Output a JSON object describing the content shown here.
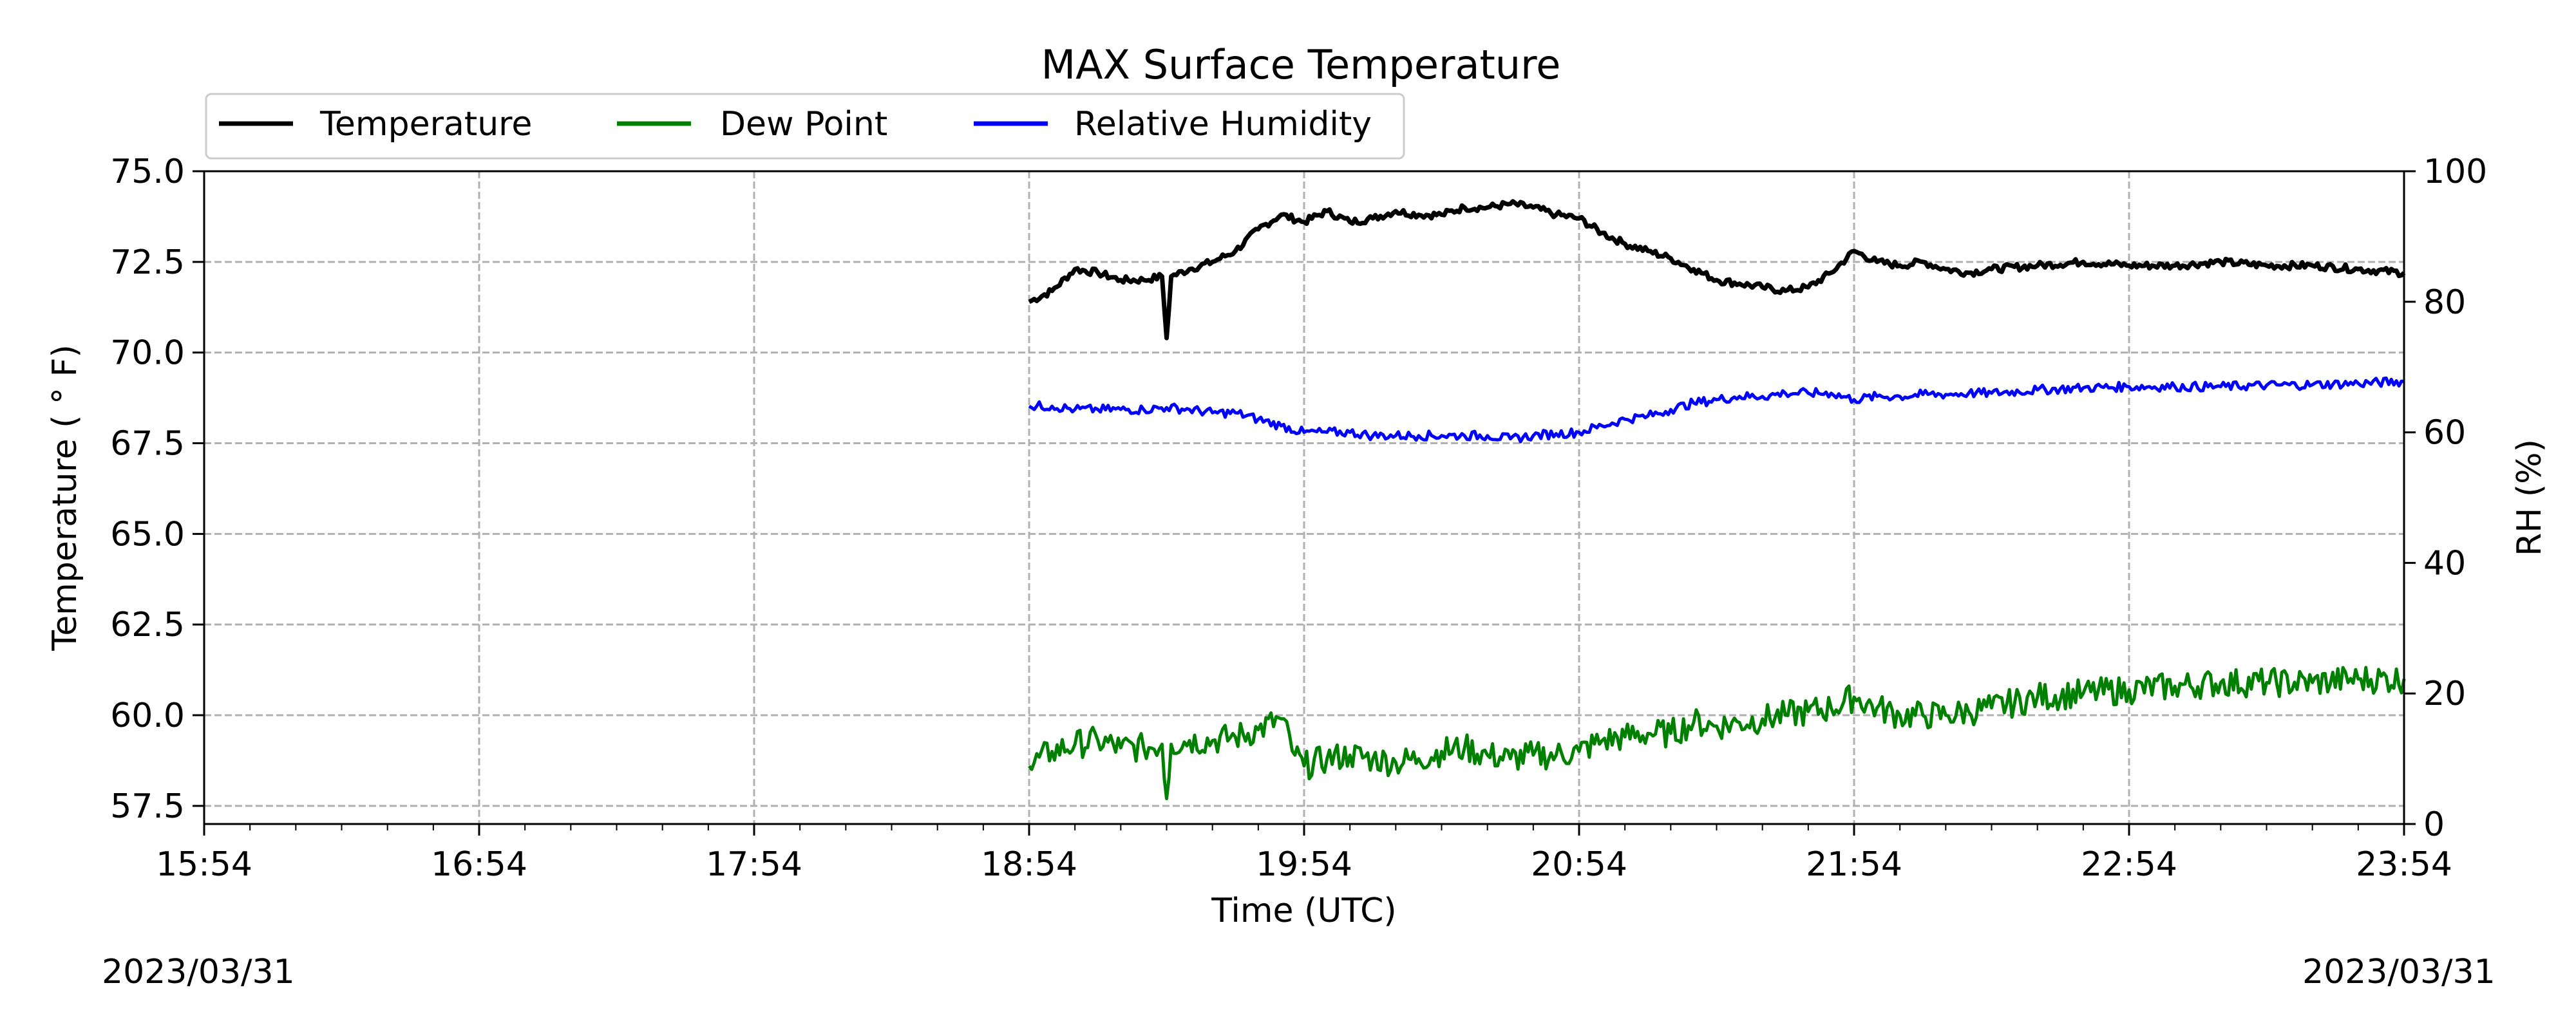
{
  "chart_data": {
    "type": "line",
    "title": "MAX Surface Temperature",
    "xlabel": "Time (UTC)",
    "ylabel": "Temperature ($^\\circ$F)",
    "ylabel_display": "Temperature ( ° F)",
    "y2label": "RH (%)",
    "xlim": [
      "15:54",
      "23:54"
    ],
    "ylim": [
      57.0,
      75.0
    ],
    "y2lim": [
      0,
      100
    ],
    "x_ticks": [
      "15:54",
      "16:54",
      "17:54",
      "18:54",
      "19:54",
      "20:54",
      "21:54",
      "22:54",
      "23:54"
    ],
    "y_ticks": [
      "57.5",
      "60.0",
      "62.5",
      "65.0",
      "67.5",
      "70.0",
      "72.5",
      "75.0"
    ],
    "y2_ticks": [
      "0",
      "20",
      "40",
      "60",
      "80",
      "100"
    ],
    "grid": true,
    "legend_position": "top-left",
    "series": [
      {
        "name": "Temperature",
        "axis": "left",
        "color": "#000000",
        "points": [
          [
            "18:54",
            71.4
          ],
          [
            "18:59",
            71.7
          ],
          [
            "19:04",
            72.3
          ],
          [
            "19:09",
            72.2
          ],
          [
            "19:14",
            72.0
          ],
          [
            "19:19",
            72.0
          ],
          [
            "19:23",
            72.1
          ],
          [
            "19:24",
            70.4
          ],
          [
            "19:25",
            72.1
          ],
          [
            "19:29",
            72.3
          ],
          [
            "19:34",
            72.5
          ],
          [
            "19:39",
            72.8
          ],
          [
            "19:44",
            73.4
          ],
          [
            "19:49",
            73.8
          ],
          [
            "19:54",
            73.6
          ],
          [
            "19:59",
            73.9
          ],
          [
            "20:04",
            73.6
          ],
          [
            "20:09",
            73.7
          ],
          [
            "20:14",
            73.9
          ],
          [
            "20:19",
            73.8
          ],
          [
            "20:24",
            73.8
          ],
          [
            "20:29",
            74.0
          ],
          [
            "20:34",
            74.0
          ],
          [
            "20:39",
            74.1
          ],
          [
            "20:44",
            74.0
          ],
          [
            "20:49",
            73.8
          ],
          [
            "20:54",
            73.7
          ],
          [
            "20:59",
            73.3
          ],
          [
            "21:04",
            73.0
          ],
          [
            "21:09",
            72.8
          ],
          [
            "21:14",
            72.6
          ],
          [
            "21:19",
            72.3
          ],
          [
            "21:24",
            72.0
          ],
          [
            "21:29",
            71.9
          ],
          [
            "21:34",
            71.8
          ],
          [
            "21:39",
            71.7
          ],
          [
            "21:44",
            71.8
          ],
          [
            "21:49",
            72.2
          ],
          [
            "21:54",
            72.8
          ],
          [
            "21:59",
            72.5
          ],
          [
            "22:04",
            72.4
          ],
          [
            "22:09",
            72.5
          ],
          [
            "22:14",
            72.3
          ],
          [
            "22:19",
            72.2
          ],
          [
            "22:24",
            72.3
          ],
          [
            "22:34",
            72.4
          ],
          [
            "22:44",
            72.5
          ],
          [
            "22:54",
            72.4
          ],
          [
            "23:04",
            72.4
          ],
          [
            "23:14",
            72.5
          ],
          [
            "23:24",
            72.4
          ],
          [
            "23:34",
            72.4
          ],
          [
            "23:44",
            72.3
          ],
          [
            "23:54",
            72.2
          ]
        ]
      },
      {
        "name": "Dew Point",
        "axis": "left",
        "color": "#008000",
        "points": [
          [
            "18:54",
            58.6
          ],
          [
            "18:59",
            59.0
          ],
          [
            "19:04",
            59.2
          ],
          [
            "19:09",
            59.3
          ],
          [
            "19:14",
            59.1
          ],
          [
            "19:19",
            59.1
          ],
          [
            "19:23",
            59.2
          ],
          [
            "19:24",
            57.7
          ],
          [
            "19:25",
            59.2
          ],
          [
            "19:29",
            59.3
          ],
          [
            "19:34",
            59.3
          ],
          [
            "19:39",
            59.4
          ],
          [
            "19:44",
            59.6
          ],
          [
            "19:49",
            59.9
          ],
          [
            "19:52",
            58.9
          ],
          [
            "19:54",
            58.6
          ],
          [
            "19:59",
            58.8
          ],
          [
            "20:04",
            58.9
          ],
          [
            "20:09",
            58.8
          ],
          [
            "20:14",
            58.7
          ],
          [
            "20:19",
            58.8
          ],
          [
            "20:24",
            59.0
          ],
          [
            "20:29",
            59.1
          ],
          [
            "20:34",
            58.9
          ],
          [
            "20:39",
            58.8
          ],
          [
            "20:44",
            58.9
          ],
          [
            "20:49",
            58.9
          ],
          [
            "20:54",
            59.0
          ],
          [
            "20:59",
            59.3
          ],
          [
            "21:04",
            59.4
          ],
          [
            "21:09",
            59.5
          ],
          [
            "21:14",
            59.5
          ],
          [
            "21:19",
            59.8
          ],
          [
            "21:24",
            59.7
          ],
          [
            "21:29",
            59.8
          ],
          [
            "21:34",
            59.9
          ],
          [
            "21:39",
            60.0
          ],
          [
            "21:44",
            60.1
          ],
          [
            "21:49",
            60.2
          ],
          [
            "21:54",
            60.5
          ],
          [
            "21:59",
            60.2
          ],
          [
            "22:04",
            60.0
          ],
          [
            "22:09",
            60.0
          ],
          [
            "22:14",
            60.0
          ],
          [
            "22:19",
            60.1
          ],
          [
            "22:24",
            60.2
          ],
          [
            "22:34",
            60.5
          ],
          [
            "22:44",
            60.6
          ],
          [
            "22:54",
            60.7
          ],
          [
            "23:04",
            60.8
          ],
          [
            "23:14",
            60.9
          ],
          [
            "23:24",
            60.9
          ],
          [
            "23:34",
            60.9
          ],
          [
            "23:44",
            61.0
          ],
          [
            "23:54",
            61.0
          ]
        ]
      },
      {
        "name": "Relative Humidity",
        "axis": "right",
        "color": "#0000ff",
        "points": [
          [
            "18:54",
            64.0
          ],
          [
            "18:59",
            64.0
          ],
          [
            "19:04",
            63.5
          ],
          [
            "19:09",
            63.5
          ],
          [
            "19:14",
            63.5
          ],
          [
            "19:19",
            63.5
          ],
          [
            "19:24",
            63.8
          ],
          [
            "19:29",
            63.5
          ],
          [
            "19:34",
            63.0
          ],
          [
            "19:39",
            63.0
          ],
          [
            "19:44",
            62.0
          ],
          [
            "19:49",
            61.0
          ],
          [
            "19:54",
            60.0
          ],
          [
            "19:59",
            60.0
          ],
          [
            "20:04",
            60.0
          ],
          [
            "20:09",
            59.5
          ],
          [
            "20:14",
            59.5
          ],
          [
            "20:19",
            59.5
          ],
          [
            "20:24",
            59.5
          ],
          [
            "20:29",
            59.5
          ],
          [
            "20:34",
            59.5
          ],
          [
            "20:39",
            59.0
          ],
          [
            "20:44",
            59.5
          ],
          [
            "20:49",
            59.8
          ],
          [
            "20:54",
            60.0
          ],
          [
            "20:59",
            61.0
          ],
          [
            "21:04",
            62.0
          ],
          [
            "21:09",
            62.5
          ],
          [
            "21:14",
            63.5
          ],
          [
            "21:19",
            64.5
          ],
          [
            "21:24",
            65.0
          ],
          [
            "21:29",
            65.5
          ],
          [
            "21:34",
            65.5
          ],
          [
            "21:39",
            66.0
          ],
          [
            "21:44",
            66.0
          ],
          [
            "21:49",
            66.0
          ],
          [
            "21:54",
            65.0
          ],
          [
            "21:59",
            65.5
          ],
          [
            "22:04",
            65.5
          ],
          [
            "22:09",
            65.8
          ],
          [
            "22:14",
            65.8
          ],
          [
            "22:19",
            66.0
          ],
          [
            "22:24",
            66.0
          ],
          [
            "22:34",
            66.5
          ],
          [
            "22:44",
            66.8
          ],
          [
            "22:54",
            67.0
          ],
          [
            "23:04",
            67.0
          ],
          [
            "23:14",
            67.0
          ],
          [
            "23:24",
            67.2
          ],
          [
            "23:34",
            67.3
          ],
          [
            "23:44",
            67.5
          ],
          [
            "23:54",
            67.8
          ]
        ]
      }
    ]
  },
  "footer": {
    "left_date": "2023/03/31",
    "right_date": "2023/03/31"
  }
}
